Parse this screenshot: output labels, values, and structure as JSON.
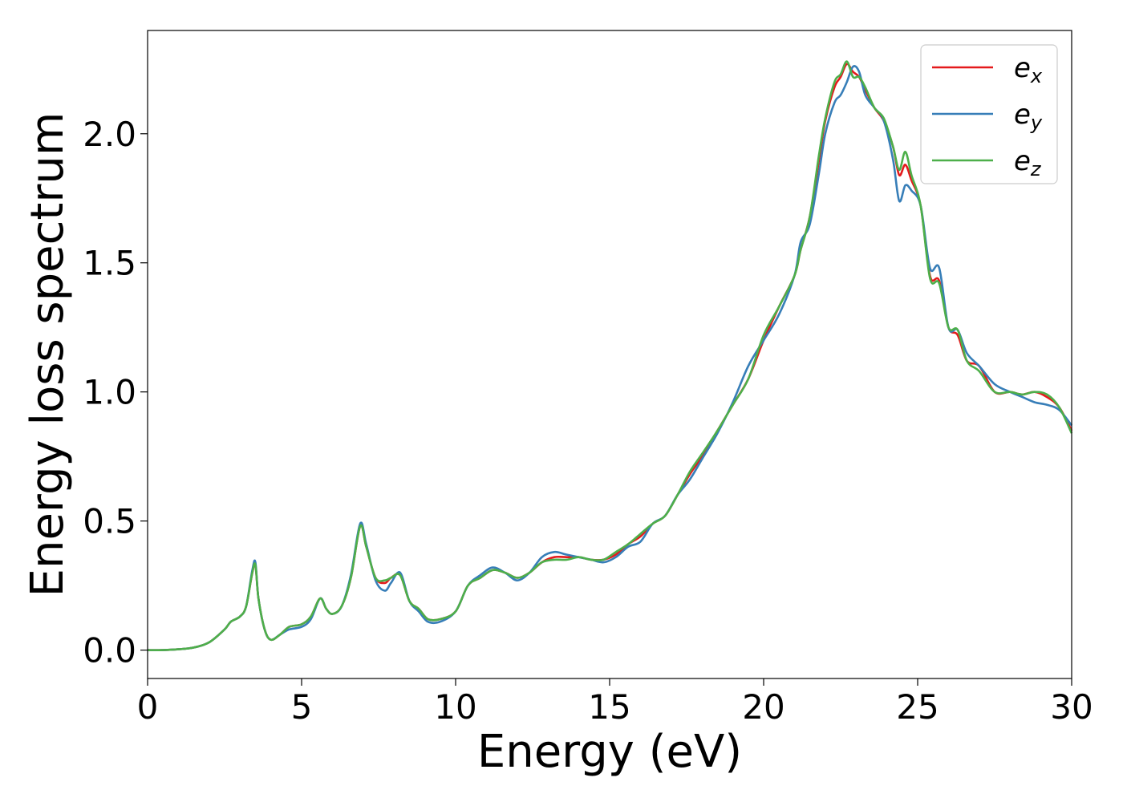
{
  "chart_data": {
    "type": "line",
    "title": "",
    "xlabel": "Energy (eV)",
    "ylabel": "Energy loss spectrum",
    "xlim": [
      0,
      30
    ],
    "ylim": [
      -0.11,
      2.4
    ],
    "xticks": [
      0,
      5,
      10,
      15,
      20,
      25,
      30
    ],
    "xtick_labels": [
      "0",
      "5",
      "10",
      "15",
      "20",
      "25",
      "30"
    ],
    "yticks": [
      0.0,
      0.5,
      1.0,
      1.5,
      2.0
    ],
    "ytick_labels": [
      "0.0",
      "0.5",
      "1.0",
      "1.5",
      "2.0"
    ],
    "grid": false,
    "legend_position": "top-right",
    "series": [
      {
        "name": "e",
        "subscript": "x",
        "color": "#e41a1c",
        "x": [
          0,
          0.5,
          1,
          1.5,
          2,
          2.5,
          2.7,
          3,
          3.2,
          3.4,
          3.5,
          3.6,
          3.8,
          4,
          4.3,
          4.6,
          5,
          5.3,
          5.6,
          5.8,
          6,
          6.3,
          6.6,
          6.9,
          7.1,
          7.4,
          7.7,
          7.9,
          8.2,
          8.5,
          8.8,
          9.1,
          9.5,
          10,
          10.4,
          10.8,
          11.2,
          11.6,
          12,
          12.4,
          12.8,
          13.2,
          13.6,
          14,
          14.4,
          14.8,
          15.2,
          15.6,
          16,
          16.4,
          16.8,
          17.2,
          17.6,
          18,
          18.5,
          19,
          19.5,
          20,
          20.5,
          21,
          21.2,
          21.5,
          21.8,
          22,
          22.3,
          22.5,
          22.7,
          22.9,
          23.1,
          23.3,
          23.6,
          23.9,
          24.2,
          24.4,
          24.6,
          24.8,
          25.1,
          25.4,
          25.7,
          26,
          26.3,
          26.6,
          27,
          27.5,
          28,
          28.4,
          28.8,
          29.2,
          29.6,
          30
        ],
        "y": [
          0,
          0,
          0.003,
          0.01,
          0.03,
          0.08,
          0.11,
          0.13,
          0.17,
          0.3,
          0.33,
          0.2,
          0.08,
          0.04,
          0.06,
          0.09,
          0.1,
          0.13,
          0.2,
          0.16,
          0.14,
          0.17,
          0.28,
          0.48,
          0.4,
          0.28,
          0.26,
          0.28,
          0.29,
          0.19,
          0.16,
          0.12,
          0.12,
          0.15,
          0.25,
          0.28,
          0.31,
          0.3,
          0.28,
          0.3,
          0.34,
          0.36,
          0.36,
          0.36,
          0.35,
          0.35,
          0.37,
          0.41,
          0.44,
          0.49,
          0.52,
          0.6,
          0.68,
          0.75,
          0.85,
          0.95,
          1.05,
          1.2,
          1.33,
          1.45,
          1.55,
          1.68,
          1.9,
          2.05,
          2.18,
          2.22,
          2.27,
          2.24,
          2.22,
          2.17,
          2.1,
          2.05,
          1.95,
          1.84,
          1.88,
          1.82,
          1.72,
          1.45,
          1.43,
          1.25,
          1.22,
          1.12,
          1.1,
          1.0,
          1.0,
          0.99,
          1.0,
          0.98,
          0.94,
          0.85
        ]
      },
      {
        "name": "e",
        "subscript": "y",
        "color": "#377eb8",
        "x": [
          0,
          0.5,
          1,
          1.5,
          2,
          2.5,
          2.7,
          3,
          3.2,
          3.4,
          3.5,
          3.6,
          3.8,
          4,
          4.3,
          4.6,
          5,
          5.3,
          5.6,
          5.8,
          6,
          6.3,
          6.6,
          6.9,
          7.1,
          7.4,
          7.7,
          7.9,
          8.2,
          8.5,
          8.8,
          9.1,
          9.5,
          10,
          10.4,
          10.8,
          11.2,
          11.6,
          12,
          12.4,
          12.8,
          13.2,
          13.6,
          14,
          14.4,
          14.8,
          15.2,
          15.6,
          16,
          16.4,
          16.8,
          17.2,
          17.6,
          18,
          18.5,
          19,
          19.5,
          20,
          20.5,
          21,
          21.2,
          21.5,
          21.8,
          22,
          22.3,
          22.5,
          22.7,
          22.9,
          23.1,
          23.3,
          23.6,
          23.9,
          24.2,
          24.4,
          24.6,
          24.8,
          25.1,
          25.4,
          25.7,
          26,
          26.3,
          26.6,
          27,
          27.5,
          28,
          28.4,
          28.8,
          29.2,
          29.6,
          30
        ],
        "y": [
          0,
          0,
          0.003,
          0.01,
          0.03,
          0.08,
          0.11,
          0.13,
          0.17,
          0.31,
          0.34,
          0.2,
          0.08,
          0.04,
          0.06,
          0.08,
          0.09,
          0.12,
          0.2,
          0.16,
          0.14,
          0.17,
          0.29,
          0.49,
          0.41,
          0.27,
          0.23,
          0.26,
          0.3,
          0.19,
          0.15,
          0.11,
          0.11,
          0.15,
          0.25,
          0.29,
          0.32,
          0.3,
          0.27,
          0.3,
          0.36,
          0.38,
          0.37,
          0.36,
          0.35,
          0.34,
          0.36,
          0.4,
          0.42,
          0.49,
          0.52,
          0.6,
          0.66,
          0.74,
          0.84,
          0.96,
          1.1,
          1.2,
          1.3,
          1.45,
          1.58,
          1.65,
          1.85,
          2.0,
          2.12,
          2.15,
          2.2,
          2.26,
          2.24,
          2.15,
          2.1,
          2.05,
          1.9,
          1.74,
          1.8,
          1.78,
          1.72,
          1.48,
          1.48,
          1.25,
          1.24,
          1.15,
          1.1,
          1.03,
          1.0,
          0.98,
          0.96,
          0.95,
          0.93,
          0.87
        ]
      },
      {
        "name": "e",
        "subscript": "z",
        "color": "#4daf4a",
        "x": [
          0,
          0.5,
          1,
          1.5,
          2,
          2.5,
          2.7,
          3,
          3.2,
          3.4,
          3.5,
          3.6,
          3.8,
          4,
          4.3,
          4.6,
          5,
          5.3,
          5.6,
          5.8,
          6,
          6.3,
          6.6,
          6.9,
          7.1,
          7.4,
          7.7,
          7.9,
          8.2,
          8.5,
          8.8,
          9.1,
          9.5,
          10,
          10.4,
          10.8,
          11.2,
          11.6,
          12,
          12.4,
          12.8,
          13.2,
          13.6,
          14,
          14.4,
          14.8,
          15.2,
          15.6,
          16,
          16.4,
          16.8,
          17.2,
          17.6,
          18,
          18.5,
          19,
          19.5,
          20,
          20.5,
          21,
          21.2,
          21.5,
          21.8,
          22,
          22.3,
          22.5,
          22.7,
          22.9,
          23.1,
          23.3,
          23.6,
          23.9,
          24.2,
          24.4,
          24.6,
          24.8,
          25.1,
          25.4,
          25.7,
          26,
          26.3,
          26.6,
          27,
          27.5,
          28,
          28.4,
          28.8,
          29.2,
          29.6,
          30
        ],
        "y": [
          0,
          0,
          0.003,
          0.01,
          0.03,
          0.08,
          0.11,
          0.13,
          0.17,
          0.3,
          0.33,
          0.2,
          0.08,
          0.04,
          0.06,
          0.09,
          0.1,
          0.13,
          0.2,
          0.16,
          0.14,
          0.17,
          0.28,
          0.48,
          0.4,
          0.28,
          0.27,
          0.28,
          0.29,
          0.19,
          0.16,
          0.12,
          0.12,
          0.15,
          0.25,
          0.28,
          0.31,
          0.3,
          0.28,
          0.3,
          0.34,
          0.35,
          0.35,
          0.36,
          0.35,
          0.35,
          0.38,
          0.41,
          0.45,
          0.49,
          0.52,
          0.6,
          0.69,
          0.76,
          0.85,
          0.95,
          1.05,
          1.22,
          1.33,
          1.45,
          1.55,
          1.68,
          1.92,
          2.06,
          2.2,
          2.23,
          2.28,
          2.22,
          2.22,
          2.18,
          2.1,
          2.06,
          1.95,
          1.86,
          1.93,
          1.84,
          1.72,
          1.44,
          1.42,
          1.25,
          1.24,
          1.12,
          1.08,
          1.0,
          1.0,
          0.99,
          1.0,
          0.99,
          0.94,
          0.84
        ]
      }
    ]
  }
}
